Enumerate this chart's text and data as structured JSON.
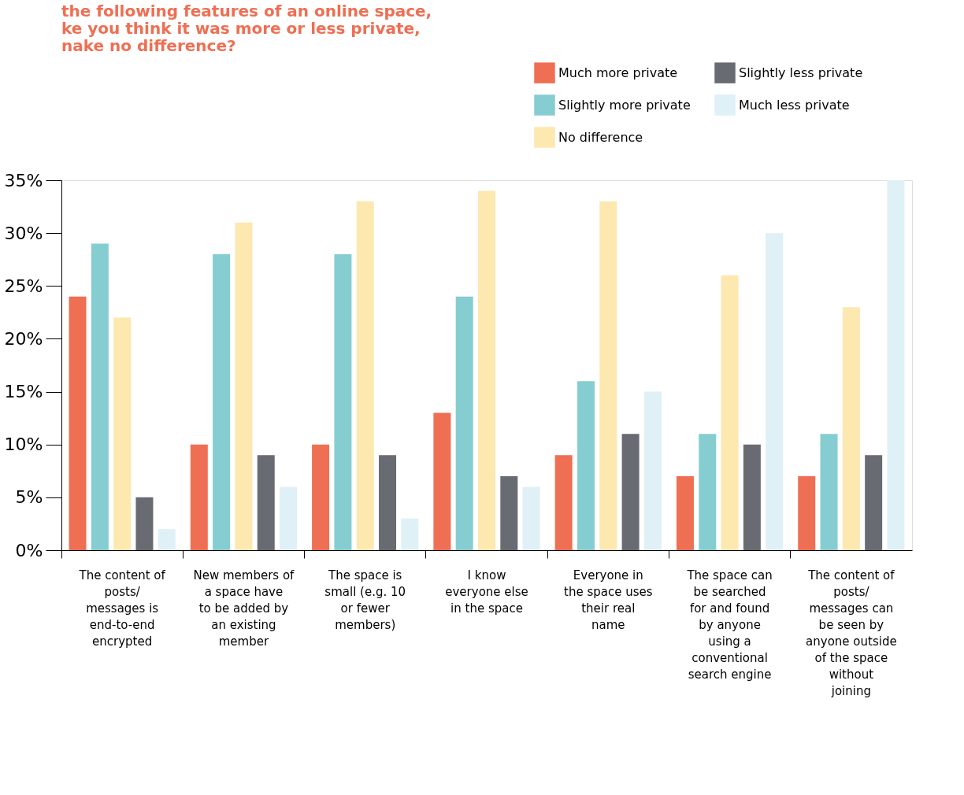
{
  "chart_data": {
    "type": "bar",
    "title": [
      "the following features of an online space,",
      "ke you think it was more or less private,",
      "nake no difference?"
    ],
    "categories": [
      "The content of posts/ messages is end-to-end encrypted",
      "New members of a space have to be added by an existing member",
      "The space is small (e.g. 10 or fewer members)",
      "I know everyone else in the space",
      "Everyone in the space uses their real name",
      "The space can be searched for and found by anyone using a conventional search engine",
      "The content of posts/ messages can be seen by anyone outside of the space without joining"
    ],
    "series": [
      {
        "name": "Much more private",
        "color": "#ee6f53",
        "values": [
          24,
          10,
          10,
          13,
          9,
          7,
          7
        ]
      },
      {
        "name": "Slightly more private",
        "color": "#86cdd1",
        "values": [
          29,
          28,
          28,
          24,
          16,
          11,
          11
        ]
      },
      {
        "name": "No difference",
        "color": "#fde8b0",
        "values": [
          22,
          31,
          33,
          34,
          33,
          26,
          23
        ]
      },
      {
        "name": "Slightly less private",
        "color": "#686b72",
        "values": [
          5,
          9,
          9,
          7,
          11,
          10,
          9
        ]
      },
      {
        "name": "Much less private",
        "color": "#e0f0f7",
        "values": [
          2,
          6,
          3,
          6,
          15,
          30,
          35
        ]
      }
    ],
    "ylim": [
      0,
      35
    ],
    "yticks": [
      {
        "value": 0,
        "label": "0%"
      },
      {
        "value": 5,
        "label": "5%"
      },
      {
        "value": 10,
        "label": "10%"
      },
      {
        "value": 15,
        "label": "15%"
      },
      {
        "value": 20,
        "label": "20%"
      },
      {
        "value": 25,
        "label": "25%"
      },
      {
        "value": 30,
        "label": "30%"
      },
      {
        "value": 35,
        "label": "35%"
      }
    ],
    "grid": false,
    "legend": "top right"
  }
}
